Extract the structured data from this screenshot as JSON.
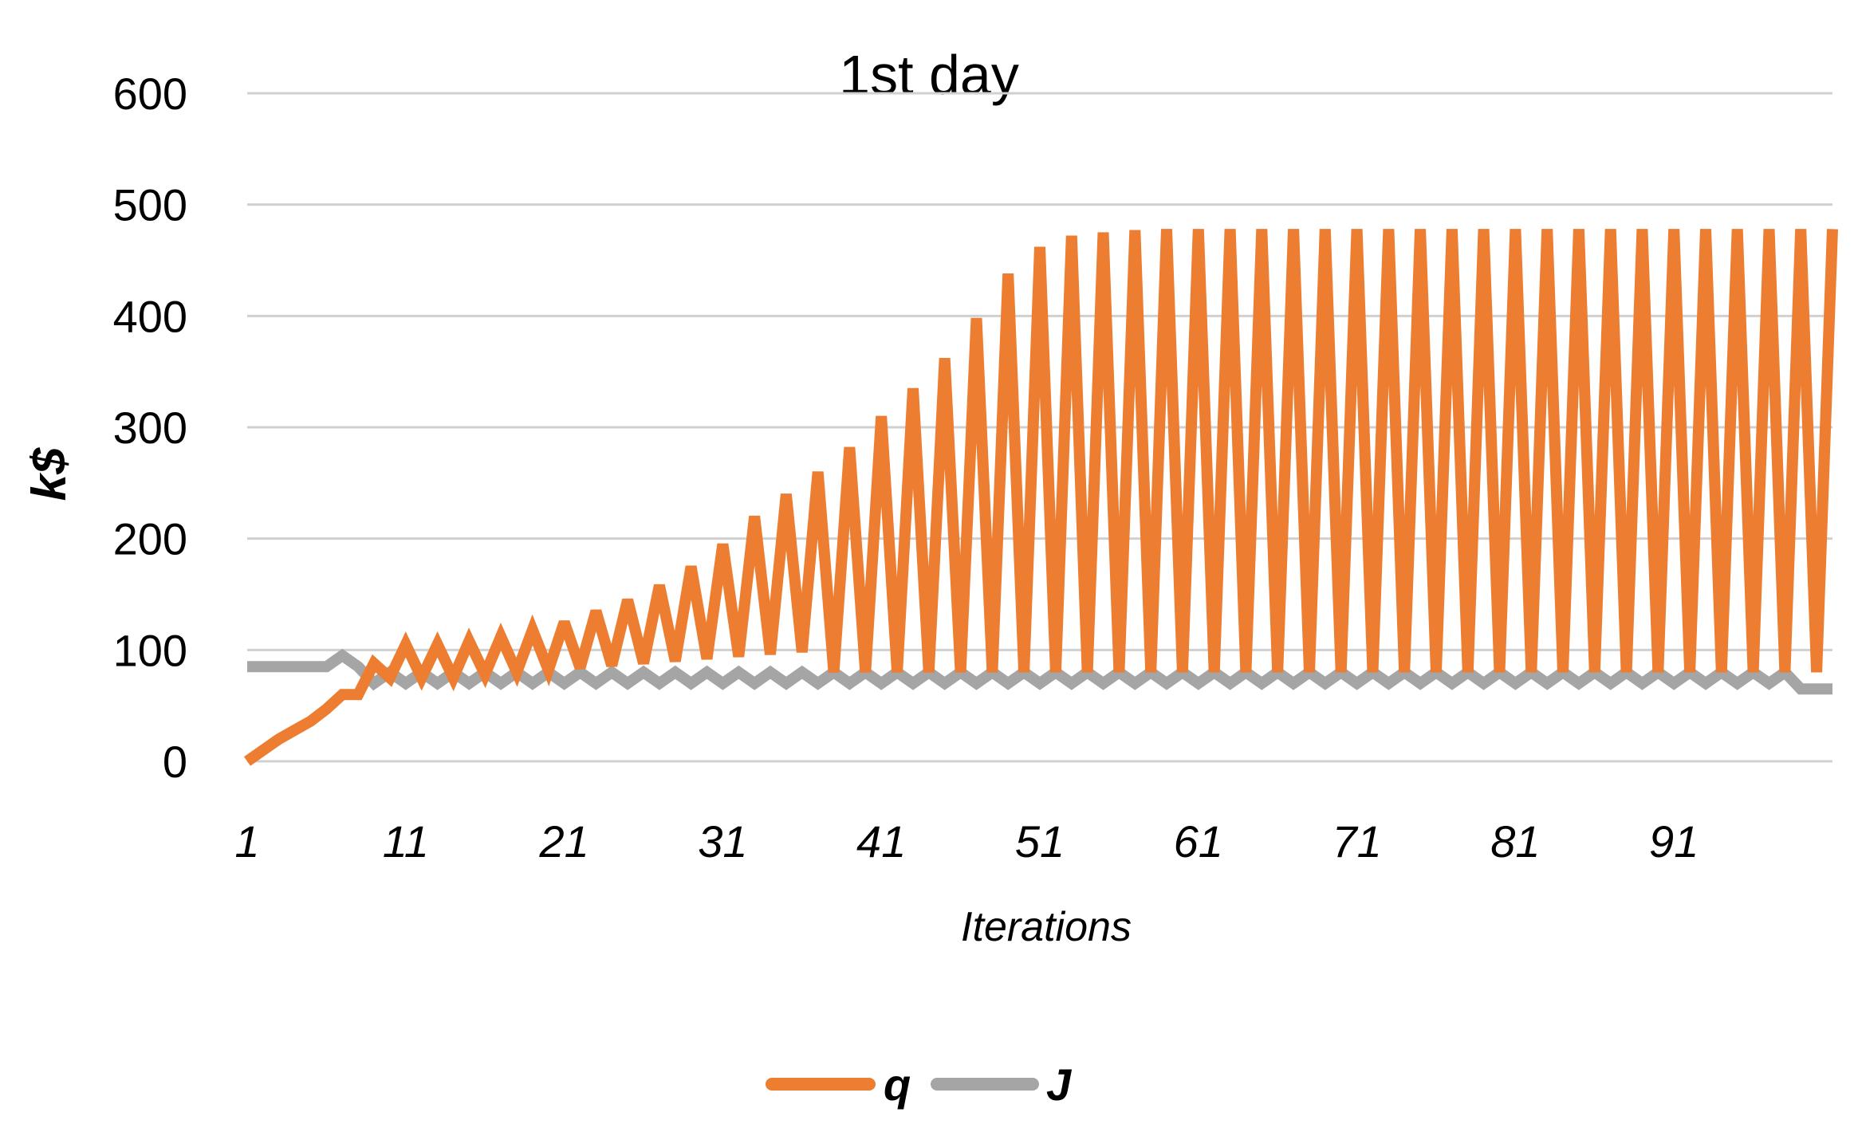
{
  "chart_data": {
    "type": "line",
    "title": "1st day",
    "xlabel": "Iterations",
    "ylabel": "k$",
    "xlim": [
      1,
      100
    ],
    "ylim": [
      0,
      600
    ],
    "y_ticks": [
      0,
      100,
      200,
      300,
      400,
      500,
      600
    ],
    "x_ticks": [
      1,
      11,
      21,
      31,
      41,
      51,
      61,
      71,
      81,
      91
    ],
    "grid": true,
    "legend_position": "bottom",
    "colors": {
      "q": "#ED7D31",
      "J": "#A5A5A5"
    },
    "series": [
      {
        "name": "q",
        "x": [
          1,
          2,
          3,
          4,
          5,
          6,
          7,
          8,
          9,
          10,
          11,
          12,
          13,
          14,
          15,
          16,
          17,
          18,
          19,
          20,
          21,
          22,
          23,
          24,
          25,
          26,
          27,
          28,
          29,
          30,
          31,
          32,
          33,
          34,
          35,
          36,
          37,
          38,
          39,
          40,
          41,
          42,
          43,
          44,
          45,
          46,
          47,
          48,
          49,
          50,
          51,
          52,
          53,
          54,
          55,
          56,
          57,
          58,
          59,
          60,
          61,
          62,
          63,
          64,
          65,
          66,
          67,
          68,
          69,
          70,
          71,
          72,
          73,
          74,
          75,
          76,
          77,
          78,
          79,
          80,
          81,
          82,
          83,
          84,
          85,
          86,
          87,
          88,
          89,
          90,
          91,
          92,
          93,
          94,
          95,
          96,
          97,
          98,
          99,
          100,
          101
        ],
        "values": [
          0,
          10,
          20,
          28,
          36,
          47,
          60,
          60,
          88,
          75,
          105,
          75,
          105,
          75,
          108,
          78,
          112,
          80,
          118,
          82,
          125,
          84,
          135,
          86,
          145,
          88,
          158,
          90,
          175,
          92,
          195,
          94,
          220,
          96,
          240,
          98,
          260,
          80,
          282,
          80,
          310,
          80,
          335,
          80,
          362,
          80,
          398,
          80,
          438,
          80,
          462,
          80,
          472,
          80,
          475,
          80,
          477,
          80,
          478,
          80,
          478,
          80,
          478,
          80,
          478,
          80,
          478,
          80,
          478,
          80,
          478,
          80,
          478,
          80,
          478,
          80,
          478,
          80,
          478,
          80,
          478,
          80,
          478,
          80,
          478,
          80,
          478,
          80,
          478,
          80,
          478,
          80,
          478,
          80,
          478,
          80,
          478,
          80,
          478,
          80,
          478
        ]
      },
      {
        "name": "J",
        "x": [
          1,
          2,
          3,
          4,
          5,
          6,
          7,
          8,
          9,
          10,
          11,
          12,
          13,
          14,
          15,
          16,
          17,
          18,
          19,
          20,
          21,
          22,
          23,
          24,
          25,
          26,
          27,
          28,
          29,
          30,
          31,
          32,
          33,
          34,
          35,
          36,
          37,
          38,
          39,
          40,
          41,
          42,
          43,
          44,
          45,
          46,
          47,
          48,
          49,
          50,
          51,
          52,
          53,
          54,
          55,
          56,
          57,
          58,
          59,
          60,
          61,
          62,
          63,
          64,
          65,
          66,
          67,
          68,
          69,
          70,
          71,
          72,
          73,
          74,
          75,
          76,
          77,
          78,
          79,
          80,
          81,
          82,
          83,
          84,
          85,
          86,
          87,
          88,
          89,
          90,
          91,
          92,
          93,
          94,
          95,
          96,
          97,
          98,
          99,
          100,
          101
        ],
        "values": [
          85,
          85,
          85,
          85,
          85,
          85,
          95,
          85,
          70,
          80,
          70,
          80,
          70,
          80,
          70,
          80,
          70,
          80,
          70,
          80,
          70,
          80,
          70,
          80,
          70,
          80,
          70,
          80,
          70,
          80,
          70,
          80,
          70,
          80,
          70,
          80,
          70,
          80,
          70,
          80,
          70,
          80,
          70,
          80,
          70,
          80,
          70,
          80,
          70,
          80,
          70,
          80,
          70,
          80,
          70,
          80,
          70,
          80,
          70,
          80,
          70,
          80,
          70,
          80,
          70,
          80,
          70,
          80,
          70,
          80,
          70,
          80,
          70,
          80,
          70,
          80,
          70,
          80,
          70,
          80,
          70,
          80,
          70,
          80,
          70,
          80,
          70,
          80,
          70,
          80,
          70,
          80,
          70,
          80,
          70,
          80,
          70,
          80,
          65,
          65,
          65
        ]
      }
    ]
  }
}
